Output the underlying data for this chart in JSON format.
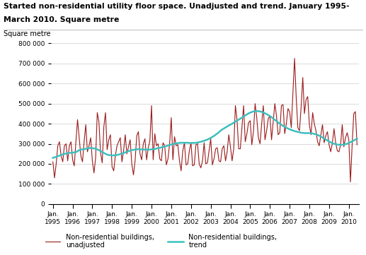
{
  "title_line1": "Started non-residential utility floor space. Unadjusted and trend. January 1995-",
  "title_line2": "March 2010. Square metre",
  "ylabel": "Square metre",
  "ylim": [
    0,
    800000
  ],
  "yticks": [
    0,
    100000,
    200000,
    300000,
    400000,
    500000,
    600000,
    700000,
    800000
  ],
  "ytick_labels": [
    "0",
    "100 000",
    "200 000",
    "300 000",
    "400 000",
    "500 000",
    "600 000",
    "700 000",
    "800 000"
  ],
  "unadjusted_color": "#9b1b1b",
  "trend_color": "#3dbfbf",
  "unadjusted_label": "Non-residential buildings,\nunadjusted",
  "trend_label": "Non-residential buildings,\ntrend",
  "background_color": "#ffffff",
  "unadjusted": [
    210000,
    130000,
    200000,
    290000,
    310000,
    240000,
    210000,
    290000,
    300000,
    215000,
    290000,
    310000,
    220000,
    190000,
    310000,
    420000,
    330000,
    240000,
    210000,
    310000,
    395000,
    260000,
    290000,
    330000,
    215000,
    155000,
    230000,
    455000,
    410000,
    255000,
    205000,
    385000,
    455000,
    270000,
    320000,
    345000,
    185000,
    165000,
    240000,
    290000,
    310000,
    330000,
    210000,
    265000,
    345000,
    250000,
    285000,
    320000,
    200000,
    145000,
    215000,
    340000,
    360000,
    250000,
    220000,
    300000,
    325000,
    220000,
    280000,
    315000,
    490000,
    220000,
    350000,
    290000,
    300000,
    225000,
    215000,
    305000,
    290000,
    195000,
    225000,
    300000,
    430000,
    220000,
    335000,
    290000,
    295000,
    215000,
    165000,
    265000,
    305000,
    195000,
    200000,
    265000,
    305000,
    190000,
    195000,
    295000,
    300000,
    200000,
    180000,
    215000,
    305000,
    200000,
    205000,
    265000,
    325000,
    195000,
    225000,
    275000,
    280000,
    215000,
    210000,
    275000,
    290000,
    215000,
    260000,
    345000,
    285000,
    215000,
    275000,
    490000,
    420000,
    275000,
    275000,
    380000,
    490000,
    310000,
    350000,
    405000,
    415000,
    295000,
    360000,
    500000,
    430000,
    330000,
    300000,
    400000,
    490000,
    320000,
    365000,
    425000,
    440000,
    320000,
    410000,
    500000,
    440000,
    345000,
    355000,
    490000,
    495000,
    350000,
    400000,
    475000,
    460000,
    380000,
    555000,
    725000,
    530000,
    380000,
    365000,
    485000,
    630000,
    450000,
    520000,
    535000,
    395000,
    345000,
    455000,
    400000,
    365000,
    310000,
    290000,
    345000,
    395000,
    305000,
    340000,
    360000,
    295000,
    260000,
    305000,
    375000,
    305000,
    265000,
    260000,
    295000,
    395000,
    285000,
    330000,
    355000,
    320000,
    110000,
    290000,
    450000,
    460000,
    295000
  ],
  "trend": [
    230000,
    232000,
    235000,
    238000,
    241000,
    244000,
    247000,
    249000,
    251000,
    253000,
    254000,
    255000,
    256000,
    257000,
    258000,
    263000,
    268000,
    271000,
    272000,
    273000,
    275000,
    277000,
    278000,
    279000,
    278000,
    277000,
    275000,
    272000,
    268000,
    264000,
    259000,
    254000,
    250000,
    246000,
    244000,
    243000,
    242000,
    242000,
    243000,
    244000,
    246000,
    248000,
    251000,
    254000,
    257000,
    260000,
    263000,
    266000,
    268000,
    270000,
    271000,
    272000,
    273000,
    273000,
    272000,
    271000,
    271000,
    271000,
    271000,
    271000,
    272000,
    273000,
    274000,
    276000,
    278000,
    280000,
    282000,
    284000,
    286000,
    289000,
    291000,
    294000,
    296000,
    298000,
    300000,
    302000,
    303000,
    304000,
    305000,
    305000,
    305000,
    305000,
    305000,
    304000,
    304000,
    304000,
    304000,
    305000,
    306000,
    308000,
    310000,
    312000,
    315000,
    318000,
    321000,
    325000,
    329000,
    334000,
    339000,
    345000,
    351000,
    358000,
    365000,
    371000,
    376000,
    381000,
    386000,
    391000,
    395000,
    400000,
    405000,
    410000,
    415000,
    420000,
    425000,
    430000,
    436000,
    441000,
    446000,
    451000,
    455000,
    458000,
    461000,
    462000,
    463000,
    462000,
    461000,
    459000,
    456000,
    452000,
    448000,
    443000,
    438000,
    432000,
    426000,
    419000,
    413000,
    406000,
    400000,
    394000,
    389000,
    384000,
    380000,
    376000,
    372000,
    369000,
    366000,
    363000,
    361000,
    359000,
    357000,
    355000,
    354000,
    353000,
    353000,
    353000,
    353000,
    352000,
    351000,
    349000,
    347000,
    344000,
    340000,
    336000,
    331000,
    326000,
    321000,
    316000,
    311000,
    307000,
    303000,
    300000,
    298000,
    296000,
    295000,
    295000,
    295000,
    296000,
    298000,
    300000,
    304000,
    308000,
    312000,
    316000,
    321000,
    325000
  ]
}
